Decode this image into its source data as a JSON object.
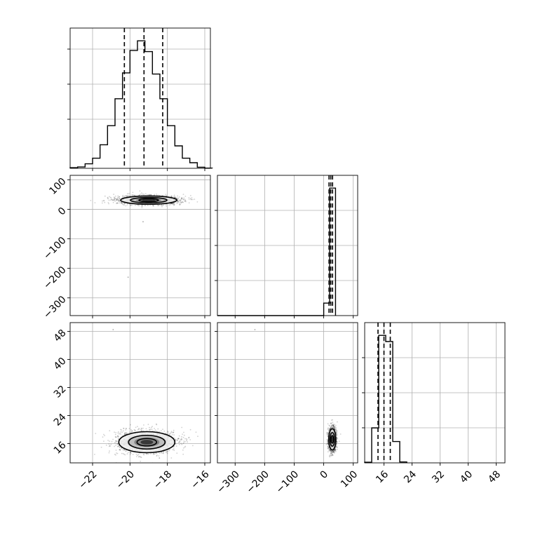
{
  "chart_data": {
    "type": "corner",
    "parameters": [
      {
        "id": "p0",
        "axis_range": [
          -23.2,
          -15.7
        ],
        "ticks": [
          -22,
          -20,
          -18,
          -16
        ],
        "ticks_shown_on": "x"
      },
      {
        "id": "p1",
        "axis_range": [
          -360,
          115
        ],
        "ticks": [
          -300,
          -200,
          -100,
          0,
          100
        ],
        "ticks_shown_on": "x and y"
      },
      {
        "id": "p2",
        "axis_range": [
          10.5,
          50.5
        ],
        "ticks": [
          16,
          24,
          32,
          40,
          48
        ],
        "ticks_shown_on": "x and y"
      }
    ],
    "grid": true,
    "histograms": [
      {
        "param": "p0",
        "bin_edges": [
          -23.2,
          -22.8,
          -22.4,
          -22.0,
          -21.6,
          -21.2,
          -20.8,
          -20.4,
          -20.0,
          -19.6,
          -19.2,
          -18.8,
          -18.4,
          -18.0,
          -17.6,
          -17.2,
          -16.8,
          -16.4,
          -16.0,
          -15.6
        ],
        "counts": [
          0.3,
          0.6,
          2.0,
          4.5,
          10.5,
          19.0,
          31.0,
          42.5,
          52.5,
          56.8,
          52.0,
          42.0,
          31.0,
          19.0,
          10.0,
          4.5,
          2.5,
          0.5,
          0.1
        ],
        "quantiles": [
          -20.3,
          -19.25,
          -18.25
        ]
      },
      {
        "param": "p1",
        "bin_edges": [
          -360,
          -340,
          -320,
          -300,
          -280,
          -260,
          -240,
          -220,
          -200,
          -180,
          -160,
          -140,
          -120,
          -100,
          -80,
          -60,
          -40,
          -20,
          0,
          20,
          40
        ],
        "counts": [
          0,
          0,
          0,
          0,
          0,
          0,
          0,
          0,
          0,
          0,
          0,
          0,
          0,
          0,
          0,
          0,
          0,
          0,
          4.5,
          46,
          0
        ],
        "quantiles": [
          18,
          24,
          30
        ]
      },
      {
        "param": "p2",
        "bin_edges": [
          10.5,
          12.5,
          14.5,
          16.5,
          18.5,
          20.5,
          22.5
        ],
        "counts": [
          0.2,
          11.3,
          41.2,
          39.2,
          6.9,
          0.3
        ],
        "quantiles": [
          14.3,
          16.0,
          17.8
        ]
      }
    ],
    "scatter_panels": [
      {
        "x": "p0",
        "y": "p1",
        "center": [
          -19.0,
          31
        ],
        "spread": [
          0.75,
          7
        ],
        "outliers": [
          [
            -19.3,
            -42
          ],
          [
            -20.1,
            -230
          ]
        ]
      },
      {
        "x": "p0",
        "y": "p2",
        "center": [
          -19.1,
          16.4
        ],
        "spread": [
          0.75,
          1.5
        ],
        "outliers": [
          [
            -20.9,
            48.5
          ]
        ]
      },
      {
        "x": "p1",
        "y": "p2",
        "center": [
          29,
          17.2
        ],
        "spread": [
          6,
          1.5
        ],
        "outliers": [
          [
            -233,
            48.5
          ]
        ]
      }
    ]
  }
}
